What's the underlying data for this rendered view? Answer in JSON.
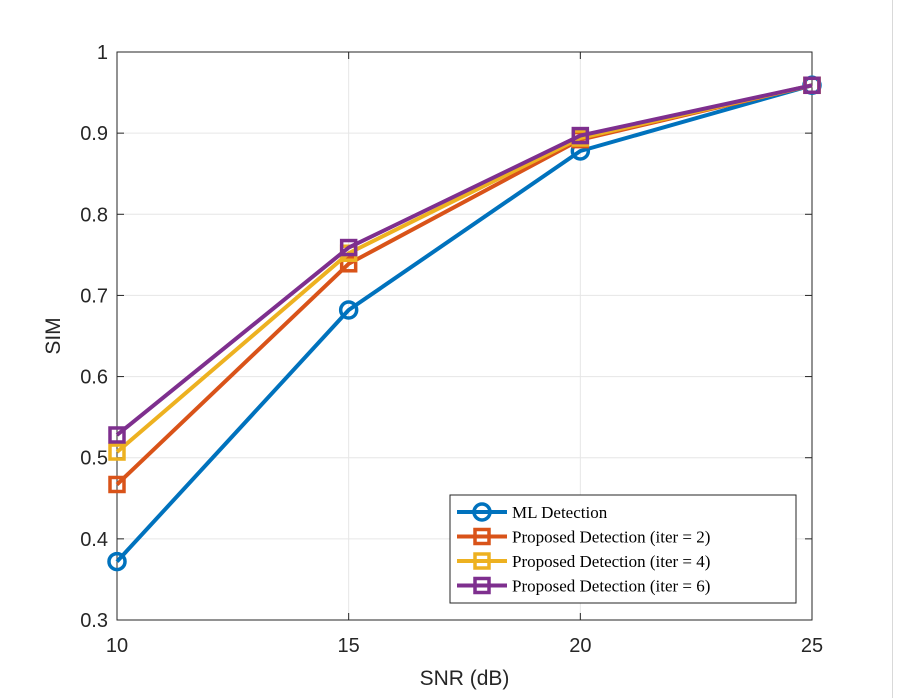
{
  "chart_data": {
    "type": "line",
    "title": "",
    "xlabel": "SNR (dB)",
    "ylabel": "SIM",
    "x": [
      10,
      15,
      20,
      25
    ],
    "xlim": [
      10,
      25
    ],
    "ylim": [
      0.3,
      1
    ],
    "xticks": [
      "10",
      "15",
      "20",
      "25"
    ],
    "yticks": [
      "0.3",
      "0.4",
      "0.5",
      "0.6",
      "0.7",
      "0.8",
      "0.9",
      "1"
    ],
    "grid": true,
    "legend_position": "bottom-right",
    "series": [
      {
        "name": "ML Detection",
        "values": [
          0.372,
          0.682,
          0.878,
          0.959
        ],
        "color": "#0072bd",
        "marker": "circle"
      },
      {
        "name": "Proposed Detection (iter = 2)",
        "values": [
          0.467,
          0.739,
          0.892,
          0.959
        ],
        "color": "#d95319",
        "marker": "square"
      },
      {
        "name": "Proposed Detection (iter = 4)",
        "values": [
          0.507,
          0.752,
          0.894,
          0.959
        ],
        "color": "#edb120",
        "marker": "square"
      },
      {
        "name": "Proposed Detection (iter = 6)",
        "values": [
          0.528,
          0.759,
          0.897,
          0.959
        ],
        "color": "#7e2f8e",
        "marker": "square"
      }
    ]
  }
}
